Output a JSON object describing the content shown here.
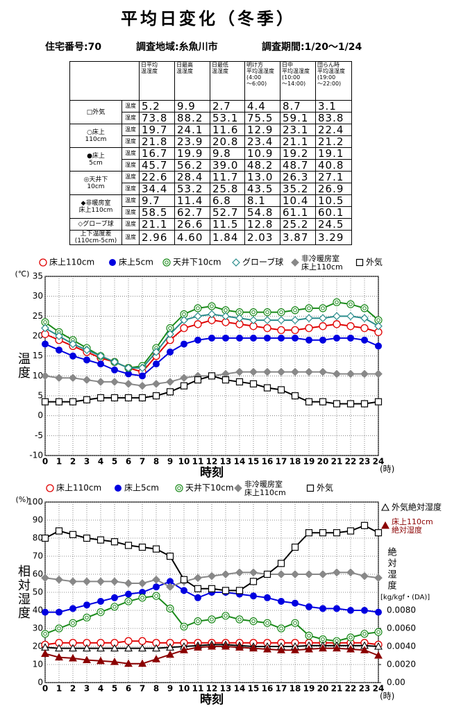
{
  "header": {
    "title": "平均日変化（冬季）",
    "info": [
      "住宅番号:70",
      "調査地域:糸魚川市",
      "調査期間:1/20〜1/24"
    ]
  },
  "table": {
    "columns": [
      [
        "日平均",
        "温湿度"
      ],
      [
        "日最高",
        "温湿度"
      ],
      [
        "日最低",
        "温湿度"
      ],
      [
        "明け方",
        "平均温湿度",
        "(4:00",
        "〜6:00)"
      ],
      [
        "日中",
        "平均温湿度",
        "(10:00",
        "〜14:00)"
      ],
      [
        "団らん時",
        "平均温湿度",
        "(19:00",
        "〜22:00)"
      ]
    ],
    "groups": [
      {
        "label": [
          "□外気"
        ],
        "rows": [
          {
            "kind": "温度",
            "values": [
              "5.2",
              "9.9",
              "2.7",
              "4.4",
              "8.7",
              "3.1"
            ]
          },
          {
            "kind": "湿度",
            "values": [
              "73.8",
              "88.2",
              "53.1",
              "75.5",
              "59.1",
              "83.8"
            ]
          }
        ]
      },
      {
        "label": [
          "○床上",
          "110cm"
        ],
        "rows": [
          {
            "kind": "温度",
            "values": [
              "19.7",
              "24.1",
              "11.6",
              "12.9",
              "23.1",
              "22.4"
            ]
          },
          {
            "kind": "湿度",
            "values": [
              "21.8",
              "23.9",
              "20.8",
              "23.4",
              "21.1",
              "21.2"
            ]
          }
        ]
      },
      {
        "label": [
          "●床上",
          "5cm"
        ],
        "rows": [
          {
            "kind": "温度",
            "values": [
              "16.7",
              "19.9",
              "9.8",
              "10.9",
              "19.2",
              "19.1"
            ]
          },
          {
            "kind": "湿度",
            "values": [
              "45.7",
              "56.2",
              "39.0",
              "48.2",
              "48.7",
              "40.8"
            ]
          }
        ]
      },
      {
        "label": [
          "◎天井下",
          "10cm"
        ],
        "rows": [
          {
            "kind": "温度",
            "values": [
              "22.6",
              "28.4",
              "11.7",
              "13.0",
              "26.3",
              "27.1"
            ]
          },
          {
            "kind": "湿度",
            "values": [
              "34.4",
              "53.2",
              "25.8",
              "43.5",
              "35.2",
              "26.9"
            ]
          }
        ]
      },
      {
        "label": [
          "◆非暖房室",
          "床上110cm"
        ],
        "rows": [
          {
            "kind": "温度",
            "values": [
              "9.7",
              "11.4",
              "6.8",
              "8.1",
              "10.4",
              "10.5"
            ]
          },
          {
            "kind": "湿度",
            "values": [
              "58.5",
              "62.7",
              "52.7",
              "54.8",
              "61.1",
              "60.1"
            ]
          }
        ]
      },
      {
        "label": [
          "◇グローブ球"
        ],
        "rows": [
          {
            "kind": "温度",
            "values": [
              "21.1",
              "26.6",
              "11.5",
              "12.8",
              "25.2",
              "24.5"
            ]
          }
        ]
      },
      {
        "label": [
          "上下温度差",
          "(110cm-5cm)"
        ],
        "rows": [
          {
            "kind": "温度",
            "values": [
              "2.96",
              "4.60",
              "1.84",
              "2.03",
              "3.87",
              "3.29"
            ]
          }
        ]
      }
    ]
  },
  "chart_data": [
    {
      "type": "line",
      "ylabel": "温度",
      "yunit": "(℃)",
      "xlabel": "時刻",
      "xunit": "(時)",
      "grid": true,
      "x": [
        0,
        1,
        2,
        3,
        4,
        5,
        6,
        7,
        8,
        9,
        10,
        11,
        12,
        13,
        14,
        15,
        16,
        17,
        18,
        19,
        20,
        21,
        22,
        23,
        24
      ],
      "xlim": [
        0,
        24
      ],
      "xticks": [
        0,
        1,
        2,
        3,
        4,
        5,
        6,
        7,
        8,
        9,
        10,
        11,
        12,
        13,
        14,
        15,
        16,
        17,
        18,
        19,
        20,
        21,
        22,
        23,
        24
      ],
      "ylim": [
        -10,
        35
      ],
      "yticks": [
        -10,
        -5,
        0,
        5,
        10,
        15,
        20,
        25,
        30,
        35
      ],
      "series": [
        {
          "name": "床上110cm",
          "color": "#e00000",
          "marker": "circle-open",
          "values": [
            20.5,
            19,
            17.5,
            16,
            14.5,
            13.5,
            12,
            11,
            15,
            19,
            22,
            23,
            24,
            23.5,
            23,
            22.5,
            22,
            21.5,
            21.5,
            22,
            22.5,
            23,
            22.5,
            22,
            21
          ]
        },
        {
          "name": "床上5cm",
          "color": "#0000e0",
          "marker": "circle",
          "values": [
            18,
            16.5,
            15,
            14,
            13,
            11.5,
            10.5,
            10,
            13,
            16,
            18,
            19,
            19.5,
            19.5,
            19.5,
            19.5,
            19.5,
            19.5,
            19.5,
            19,
            19,
            19.5,
            19.5,
            19,
            17.5
          ]
        },
        {
          "name": "天井下10cm",
          "color": "#1a8a1a",
          "marker": "double-circle",
          "values": [
            23.5,
            21,
            19,
            17,
            15,
            13.5,
            12,
            12.5,
            17,
            22,
            25.5,
            27,
            27.5,
            26.5,
            26,
            26,
            26,
            26,
            26.5,
            27,
            27,
            28.5,
            28,
            27,
            24
          ]
        },
        {
          "name": "グローブ球",
          "color": "#2a8c8c",
          "marker": "diamond-open",
          "values": [
            22,
            20,
            18,
            16.5,
            15,
            13.5,
            12,
            12,
            16,
            20.5,
            24,
            25,
            25.5,
            25,
            24.5,
            24,
            24,
            24,
            24,
            24.5,
            24.5,
            25,
            25,
            24.5,
            22.5
          ]
        },
        {
          "name": "非冷暖房室 床上110cm",
          "color": "#888888",
          "marker": "diamond",
          "values": [
            10,
            9.5,
            9.5,
            9,
            8.5,
            8.5,
            8,
            7.5,
            8,
            8.5,
            9.5,
            10,
            10,
            10.5,
            11,
            11,
            11,
            11,
            11,
            11,
            11,
            10.5,
            10.5,
            10.5,
            10.5
          ]
        },
        {
          "name": "外気",
          "color": "#000000",
          "marker": "square-open",
          "values": [
            3.5,
            3.5,
            3.5,
            4,
            4.5,
            4.5,
            4.5,
            4.5,
            5,
            6,
            7.5,
            9,
            10,
            9,
            8.5,
            8,
            7,
            6.5,
            5,
            3.5,
            3.5,
            3,
            3,
            3,
            3.5
          ]
        }
      ]
    },
    {
      "type": "line",
      "ylabel": "相対湿度",
      "yunit": "(%)",
      "xlabel": "時刻",
      "xunit": "(時)",
      "y2label": "絶対湿度",
      "y2unit": "[kg/kgf・(DA)]",
      "grid": true,
      "x": [
        0,
        1,
        2,
        3,
        4,
        5,
        6,
        7,
        8,
        9,
        10,
        11,
        12,
        13,
        14,
        15,
        16,
        17,
        18,
        19,
        20,
        21,
        22,
        23,
        24
      ],
      "xlim": [
        0,
        24
      ],
      "xticks": [
        0,
        1,
        2,
        3,
        4,
        5,
        6,
        7,
        8,
        9,
        10,
        11,
        12,
        13,
        14,
        15,
        16,
        17,
        18,
        19,
        20,
        21,
        22,
        23,
        24
      ],
      "ylim": [
        0,
        100
      ],
      "yticks": [
        0,
        10,
        20,
        30,
        40,
        50,
        60,
        70,
        80,
        90,
        100
      ],
      "y2lim": [
        0,
        0.02
      ],
      "y2ticks": [
        {
          "value": 0,
          "label": "0.00"
        },
        {
          "value": 0.002,
          "label": "0.0020"
        },
        {
          "value": 0.004,
          "label": "0.0040"
        },
        {
          "value": 0.006,
          "label": "0.0060"
        },
        {
          "value": 0.008,
          "label": "0.0080"
        }
      ],
      "series": [
        {
          "name": "床上110cm",
          "color": "#e00000",
          "marker": "circle-open",
          "values": [
            21,
            22,
            22,
            22,
            22,
            22,
            23,
            23,
            22,
            22,
            22,
            22,
            22,
            22,
            22,
            22,
            22,
            22,
            22,
            22,
            22,
            22,
            22,
            22,
            21
          ]
        },
        {
          "name": "床上5cm",
          "color": "#0000e0",
          "marker": "circle",
          "values": [
            39,
            39,
            41,
            43,
            45,
            47,
            49,
            50,
            53,
            56,
            51,
            47,
            50,
            50,
            49,
            48,
            47,
            45,
            44,
            42,
            41,
            41,
            40,
            40,
            39
          ]
        },
        {
          "name": "天井下10cm",
          "color": "#1a8a1a",
          "marker": "double-circle",
          "values": [
            27,
            30,
            33,
            36,
            39,
            42,
            45,
            47,
            48,
            41,
            31,
            34,
            35,
            37,
            35,
            34,
            33,
            30,
            33,
            26,
            24,
            23,
            25,
            27,
            28
          ]
        },
        {
          "name": "非冷暖房室 床上110cm",
          "color": "#888888",
          "marker": "diamond",
          "values": [
            58,
            57,
            56,
            56,
            56,
            56,
            55,
            55,
            57,
            53,
            56,
            58,
            59,
            60,
            61,
            61,
            60,
            60,
            60,
            60,
            60,
            61,
            61,
            59,
            58
          ]
        },
        {
          "name": "外気",
          "color": "#000000",
          "marker": "square-open",
          "values": [
            80,
            84,
            82,
            80,
            79,
            78,
            76,
            75,
            74,
            70,
            57,
            52,
            52,
            51,
            51,
            56,
            60,
            66,
            75,
            83,
            83,
            83,
            84,
            87,
            83
          ]
        },
        {
          "name": "外気絶対湿度",
          "color": "#000000",
          "marker": "triangle-open",
          "axis": "y2",
          "values": [
            0.0039,
            0.0038,
            0.0038,
            0.0038,
            0.0038,
            0.0038,
            0.0038,
            0.0038,
            0.0038,
            0.0039,
            0.004,
            0.0041,
            0.0042,
            0.0042,
            0.0041,
            0.004,
            0.004,
            0.004,
            0.004,
            0.0041,
            0.0041,
            0.0041,
            0.0041,
            0.0041,
            0.004
          ]
        },
        {
          "name": "床上110cm 絶対湿度",
          "color": "#8b0000",
          "marker": "triangle",
          "axis": "y2",
          "values": [
            0.0032,
            0.0028,
            0.0027,
            0.0025,
            0.0024,
            0.0023,
            0.0021,
            0.0021,
            0.0026,
            0.0031,
            0.0036,
            0.0039,
            0.004,
            0.004,
            0.0039,
            0.0038,
            0.0037,
            0.0036,
            0.0036,
            0.0037,
            0.0038,
            0.0038,
            0.0037,
            0.0036,
            0.003
          ]
        }
      ]
    }
  ]
}
